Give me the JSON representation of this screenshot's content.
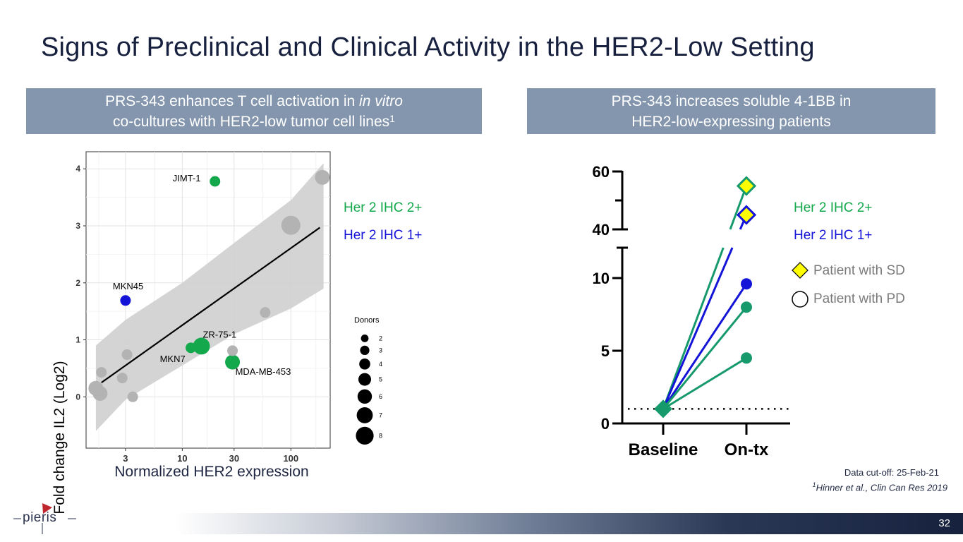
{
  "slide": {
    "title": "Signs of Preclinical and Clinical Activity in the HER2-Low Setting",
    "page_number": "32",
    "data_cutoff": "Data cut-off: 25-Feb-21",
    "citation_sup": "1",
    "citation": "Hinner et al., Clin Can Res 2019",
    "logo": "pieris"
  },
  "left_banner": {
    "line1_pre": "PRS-343 enhances T cell activation in ",
    "line1_italic": "in vitro",
    "line2": "co-cultures with HER2-low tumor cell lines",
    "line2_sup": "1"
  },
  "right_banner": {
    "line1": "PRS-343 increases soluble 4-1BB in",
    "line2": "HER2-low-expressing patients"
  },
  "legend_left": {
    "ihc2": "Her 2 IHC 2+",
    "ihc1": "Her 2 IHC 1+"
  },
  "legend_right": {
    "ihc2": "Her 2 IHC 2+",
    "ihc1": "Her 2 IHC 1+",
    "sd": "Patient with SD",
    "pd": "Patient with PD"
  },
  "colors": {
    "green": "#13a84b",
    "blue": "#1414d8",
    "gray_point": "#b3b3b3",
    "teal_line": "#169a6c",
    "yellow": "#ffff00"
  },
  "chart_data": [
    {
      "type": "scatter",
      "title": "",
      "xlabel": "Normalized HER2 expression",
      "ylabel": "Fold change IL2 (Log2)",
      "x_scale": "log",
      "xlim": [
        1.3,
        230
      ],
      "ylim": [
        -0.9,
        4.3
      ],
      "x_ticks": [
        3,
        10,
        30,
        100
      ],
      "x_tick_labels": [
        "3",
        "10",
        "30",
        "100"
      ],
      "y_ticks": [
        0,
        1,
        2,
        3,
        4
      ],
      "y_tick_labels": [
        "0",
        "1",
        "2",
        "3",
        "4"
      ],
      "grid": true,
      "regression_line": {
        "x": [
          1.8,
          185
        ],
        "y": [
          0.25,
          2.97
        ]
      },
      "confidence_band": {
        "x": [
          1.6,
          3,
          10,
          30,
          100,
          200
        ],
        "upper": [
          0.9,
          1.35,
          2.0,
          2.7,
          3.45,
          4.1
        ],
        "lower": [
          -0.6,
          -0.05,
          0.55,
          1.1,
          1.55,
          1.9
        ]
      },
      "points": [
        {
          "label": "JIMT-1",
          "x": 20,
          "y": 3.78,
          "size": 3,
          "group": "Her 2 IHC 2+"
        },
        {
          "label": "MKN45",
          "x": 3,
          "y": 1.69,
          "size": 3,
          "group": "Her 2 IHC 1+"
        },
        {
          "label": "ZR-75-1",
          "x": 15,
          "y": 0.89,
          "size": 6,
          "group": "Her 2 IHC 2+"
        },
        {
          "label": "MKN7",
          "x": 12,
          "y": 0.86,
          "size": 3,
          "group": "Her 2 IHC 2+"
        },
        {
          "label": "MDA-MB-453",
          "x": 29,
          "y": 0.61,
          "size": 5,
          "group": "Her 2 IHC 2+"
        },
        {
          "label": "",
          "x": 100,
          "y": 3.01,
          "size": 7,
          "group": "other"
        },
        {
          "label": "",
          "x": 195,
          "y": 3.85,
          "size": 5,
          "group": "other"
        },
        {
          "label": "",
          "x": 58,
          "y": 1.48,
          "size": 3,
          "group": "other"
        },
        {
          "label": "",
          "x": 29,
          "y": 0.81,
          "size": 3,
          "group": "other"
        },
        {
          "label": "",
          "x": 3.1,
          "y": 0.74,
          "size": 3,
          "group": "other"
        },
        {
          "label": "",
          "x": 1.8,
          "y": 0.43,
          "size": 3,
          "group": "other"
        },
        {
          "label": "",
          "x": 2.8,
          "y": 0.33,
          "size": 3,
          "group": "other"
        },
        {
          "label": "",
          "x": 1.6,
          "y": 0.15,
          "size": 5,
          "group": "other"
        },
        {
          "label": "",
          "x": 1.75,
          "y": 0.06,
          "size": 5,
          "group": "other"
        },
        {
          "label": "",
          "x": 3.5,
          "y": 0.0,
          "size": 3,
          "group": "other"
        }
      ],
      "size_legend": {
        "title": "Donors",
        "sizes": [
          2,
          3,
          4,
          5,
          6,
          7,
          8
        ]
      }
    },
    {
      "type": "line",
      "title": "",
      "xlabel": "",
      "ylabel": "",
      "categories": [
        "Baseline",
        "On-tx"
      ],
      "y_axis_broken": true,
      "y_ticks_lower": [
        0,
        5,
        10
      ],
      "y_ticks_upper": [
        40,
        60
      ],
      "y_tick_labels": [
        "0",
        "5",
        "10",
        "40",
        "60"
      ],
      "reference_line": 1,
      "series": [
        {
          "name": "Her 2 IHC 2+",
          "outcome": "SD",
          "values": [
            1,
            55
          ]
        },
        {
          "name": "Her 2 IHC 1+",
          "outcome": "SD",
          "values": [
            1,
            45
          ]
        },
        {
          "name": "Her 2 IHC 1+",
          "outcome": "PD",
          "values": [
            1,
            9.6
          ]
        },
        {
          "name": "Her 2 IHC 2+",
          "outcome": "PD",
          "values": [
            1,
            8
          ]
        },
        {
          "name": "Her 2 IHC 2+",
          "outcome": "PD",
          "values": [
            1,
            4.5
          ]
        }
      ]
    }
  ]
}
